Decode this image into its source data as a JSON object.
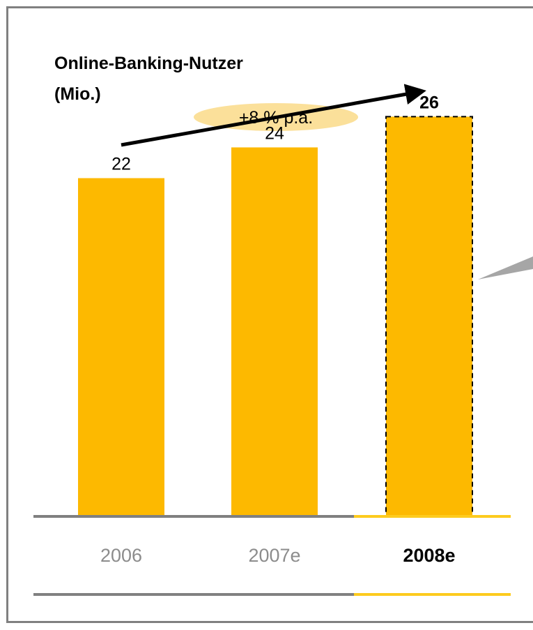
{
  "chart_data": {
    "type": "bar",
    "title": "Online-Banking-Nutzer",
    "unit": "(Mio.)",
    "categories": [
      "2006",
      "2007e",
      "2008e"
    ],
    "values": [
      22,
      24,
      26
    ],
    "highlight_index": 2,
    "growth_annotation": "+8 % p.a.",
    "ylim": [
      0,
      32
    ],
    "grid": false,
    "legend": "none",
    "colors": {
      "bar": "#FDB900",
      "growth_bubble": "#FBE09A",
      "axis": "#808080",
      "axis_highlight": "#FDCB1E",
      "category_text": "#8C8C8C",
      "frame": "#808080"
    },
    "icons": [
      "trend-arrow-icon",
      "callout-pointer-icon"
    ]
  }
}
